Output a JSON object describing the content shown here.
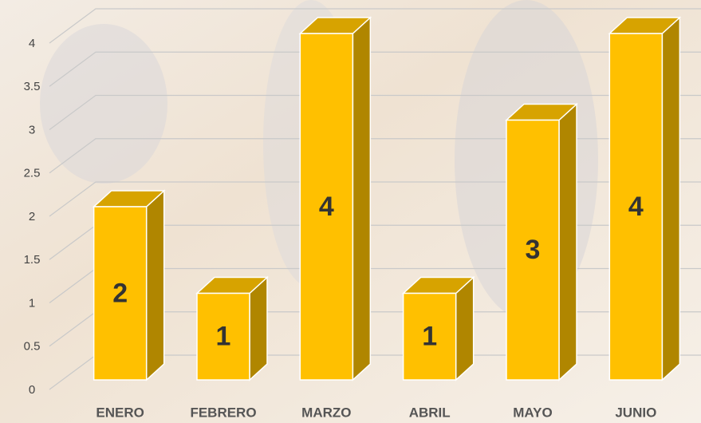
{
  "chart_data": {
    "type": "bar3d",
    "categories": [
      "ENERO",
      "FEBRERO",
      "MARZO",
      "ABRIL",
      "MAYO",
      "JUNIO"
    ],
    "values": [
      2,
      1,
      4,
      1,
      3,
      4
    ],
    "color": "#FFC000",
    "ylim": [
      0,
      4
    ],
    "yticks": [
      0,
      0.5,
      1,
      1.5,
      2,
      2.5,
      3,
      3.5,
      4
    ],
    "grid": true
  }
}
